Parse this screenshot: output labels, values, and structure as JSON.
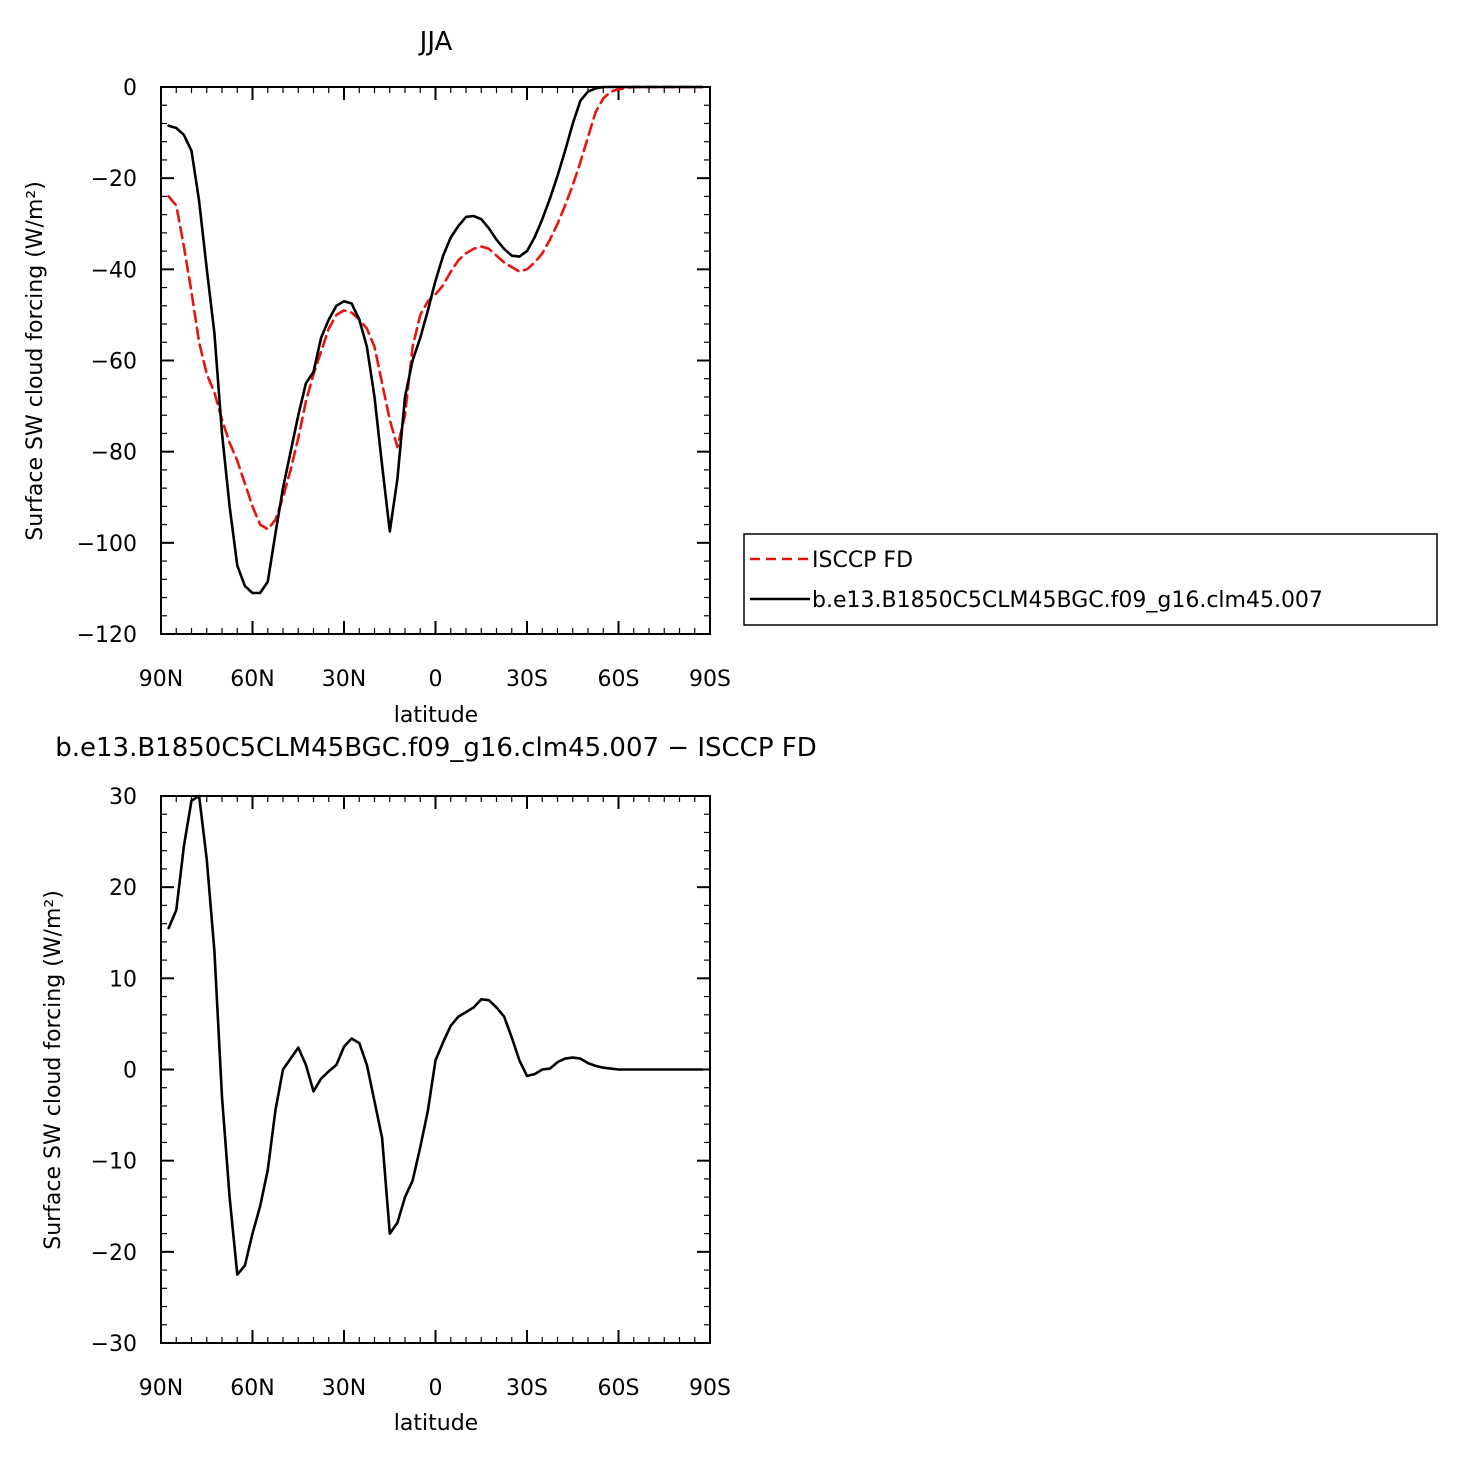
{
  "colors": {
    "isccp": "#e8150f",
    "model": "#000000",
    "frame": "#000000"
  },
  "chart_data": [
    {
      "type": "line",
      "title": "JJA",
      "xlabel": "latitude",
      "ylabel": "Surface SW cloud forcing (W/m²)",
      "xlim": [
        90,
        -90
      ],
      "ylim": [
        -120,
        0
      ],
      "xticks": [
        90,
        60,
        30,
        0,
        -30,
        -60,
        -90
      ],
      "xtick_labels": [
        "90N",
        "60N",
        "30N",
        "0",
        "30S",
        "60S",
        "90S"
      ],
      "yticks": [
        0,
        -20,
        -40,
        -60,
        -80,
        -100,
        -120
      ],
      "ytick_labels": [
        "0",
        "−20",
        "−40",
        "−60",
        "−80",
        "−100",
        "−120"
      ],
      "legend": {
        "placement": "right",
        "entries": [
          "ISCCP FD",
          "b.e13.B1850C5CLM45BGC.f09_g16.clm45.007"
        ]
      },
      "series": [
        {
          "name": "ISCCP FD",
          "style": "dashed",
          "color": "#e8150f",
          "x": [
            87.5,
            85,
            82.5,
            80,
            77.5,
            75,
            72.5,
            70,
            67.5,
            65,
            62.5,
            60,
            57.5,
            55,
            52.5,
            50,
            47.5,
            45,
            42.5,
            40,
            37.5,
            35,
            32.5,
            30,
            27.5,
            25,
            22.5,
            20,
            17.5,
            15,
            12.5,
            10,
            7.5,
            5,
            2.5,
            0,
            -2.5,
            -5,
            -7.5,
            -10,
            -12.5,
            -15,
            -17.5,
            -20,
            -22.5,
            -25,
            -27.5,
            -30,
            -32.5,
            -35,
            -37.5,
            -40,
            -42.5,
            -45,
            -47.5,
            -50,
            -52.5,
            -55,
            -57.5,
            -60,
            -62.5,
            -65,
            -67.5,
            -70,
            -72.5,
            -75,
            -77.5,
            -80,
            -82.5,
            -85,
            -87.5
          ],
          "values": [
            -24,
            -26,
            -35,
            -45,
            -56,
            -63,
            -67,
            -73,
            -78,
            -82,
            -87,
            -92,
            -96,
            -97,
            -95,
            -90,
            -84,
            -77,
            -69,
            -63,
            -58,
            -53,
            -50,
            -49,
            -49.5,
            -51,
            -53,
            -57,
            -65,
            -73,
            -79,
            -72,
            -57,
            -50,
            -47,
            -45.5,
            -43.5,
            -40.5,
            -38,
            -36.5,
            -35.5,
            -35,
            -35.5,
            -37,
            -38.5,
            -39.5,
            -40.5,
            -40,
            -38.5,
            -36.5,
            -33.5,
            -30,
            -26,
            -21.5,
            -16.5,
            -11,
            -5.5,
            -2.5,
            -1,
            -0.5,
            -0.2,
            0,
            0,
            0,
            0,
            0,
            0,
            0,
            0,
            0,
            0
          ]
        },
        {
          "name": "b.e13.B1850C5CLM45BGC.f09_g16.clm45.007",
          "style": "solid",
          "color": "#000000",
          "x": [
            87.5,
            85,
            82.5,
            80,
            77.5,
            75,
            72.5,
            70,
            67.5,
            65,
            62.5,
            60,
            57.5,
            55,
            52.5,
            50,
            47.5,
            45,
            42.5,
            40,
            37.5,
            35,
            32.5,
            30,
            27.5,
            25,
            22.5,
            20,
            17.5,
            15,
            12.5,
            10,
            7.5,
            5,
            2.5,
            0,
            -2.5,
            -5,
            -7.5,
            -10,
            -12.5,
            -15,
            -17.5,
            -20,
            -22.5,
            -25,
            -27.5,
            -30,
            -32.5,
            -35,
            -37.5,
            -40,
            -42.5,
            -45,
            -47.5,
            -50,
            -52.5,
            -55,
            -57.5,
            -60,
            -62.5,
            -65,
            -67.5,
            -70,
            -72.5,
            -75,
            -77.5,
            -80,
            -82.5,
            -85,
            -87.5
          ],
          "values": [
            -8.5,
            -9,
            -10.5,
            -14,
            -25,
            -40,
            -54,
            -76,
            -92,
            -105,
            -109.5,
            -111,
            -111,
            -108.5,
            -98,
            -88,
            -80,
            -72,
            -65,
            -62.5,
            -55,
            -51,
            -48,
            -47,
            -47.5,
            -51,
            -57,
            -68,
            -83,
            -97.5,
            -86,
            -68,
            -60,
            -55,
            -49,
            -42.5,
            -37,
            -33,
            -30.5,
            -28.5,
            -28.3,
            -29,
            -31,
            -33.5,
            -35.5,
            -37,
            -37.2,
            -36,
            -33,
            -29,
            -24.5,
            -19.5,
            -14,
            -8,
            -3,
            -1,
            -0.3,
            0,
            0,
            0,
            0,
            0,
            0,
            0,
            0,
            0,
            0,
            0,
            0,
            0,
            0
          ]
        }
      ]
    },
    {
      "type": "line",
      "title": "b.e13.B1850C5CLM45BGC.f09_g16.clm45.007 − ISCCP FD",
      "xlabel": "latitude",
      "ylabel": "Surface SW cloud forcing (W/m²)",
      "xlim": [
        90,
        -90
      ],
      "ylim": [
        -30,
        30
      ],
      "xticks": [
        90,
        60,
        30,
        0,
        -30,
        -60,
        -90
      ],
      "xtick_labels": [
        "90N",
        "60N",
        "30N",
        "0",
        "30S",
        "60S",
        "90S"
      ],
      "yticks": [
        30,
        20,
        10,
        0,
        -10,
        -20,
        -30
      ],
      "ytick_labels": [
        "30",
        "20",
        "10",
        "0",
        "−10",
        "−20",
        "−30"
      ],
      "series": [
        {
          "style": "solid",
          "color": "#000000",
          "x": [
            87.5,
            85,
            82.5,
            80,
            77.5,
            75,
            72.5,
            70,
            67.5,
            65,
            62.5,
            60,
            57.5,
            55,
            52.5,
            50,
            47.5,
            45,
            42.5,
            40,
            37.5,
            35,
            32.5,
            30,
            27.5,
            25,
            22.5,
            20,
            17.5,
            15,
            12.5,
            10,
            7.5,
            5,
            2.5,
            0,
            -2.5,
            -5,
            -7.5,
            -10,
            -12.5,
            -15,
            -17.5,
            -20,
            -22.5,
            -25,
            -27.5,
            -30,
            -32.5,
            -35,
            -37.5,
            -40,
            -42.5,
            -45,
            -47.5,
            -50,
            -52.5,
            -55,
            -57.5,
            -60,
            -62.5,
            -65,
            -67.5,
            -70,
            -72.5,
            -75,
            -77.5,
            -80,
            -82.5,
            -85,
            -87.5
          ],
          "values": [
            15.5,
            17.5,
            24.5,
            29.5,
            30,
            23,
            13,
            -3,
            -14,
            -22.5,
            -21.5,
            -18,
            -15,
            -11,
            -4.5,
            0,
            1.2,
            2.4,
            0.5,
            -2.4,
            -1,
            -0.2,
            0.5,
            2.5,
            3.4,
            2.9,
            0.5,
            -3.5,
            -7.5,
            -18,
            -16.8,
            -14,
            -12.2,
            -8.5,
            -4.5,
            1,
            3,
            4.8,
            5.8,
            6.3,
            6.8,
            7.7,
            7.6,
            6.8,
            5.8,
            3.5,
            1,
            -0.7,
            -0.5,
            0,
            0.1,
            0.8,
            1.2,
            1.3,
            1.2,
            0.7,
            0.4,
            0.2,
            0.1,
            0,
            0,
            0,
            0,
            0,
            0,
            0,
            0,
            0,
            0,
            0,
            0
          ]
        }
      ]
    }
  ]
}
